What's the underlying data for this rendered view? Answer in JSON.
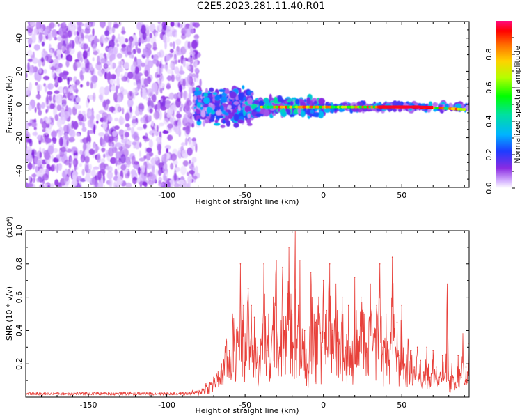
{
  "title": "C2E5.2023.281.11.40.R01",
  "chart_data": [
    {
      "type": "heatmap",
      "xlabel": "Height of straight line (km)",
      "ylabel": "Frequency (Hz)",
      "xlim": [
        -190,
        93
      ],
      "ylim": [
        -50,
        50
      ],
      "xticks": [
        -150,
        -100,
        -50,
        0,
        50
      ],
      "yticks": [
        -40,
        -20,
        0,
        20,
        40
      ],
      "colorbar": {
        "label": "Normalized spectral amplitude",
        "range": [
          0.0,
          1.0
        ],
        "ticks": [
          "0.0",
          "0.2",
          "0.4",
          "0.6",
          "0.8"
        ]
      },
      "regions": [
        {
          "x": [
            -190,
            -80
          ],
          "freq": [
            -50,
            50
          ],
          "amplitude": 0.05,
          "pattern": "diffuse noise"
        },
        {
          "x": [
            -80,
            -45
          ],
          "freq": [
            -12,
            12
          ],
          "amplitude": 0.3,
          "pattern": "widening cluster"
        },
        {
          "x": [
            -45,
            0
          ],
          "freq": [
            -6,
            5
          ],
          "amplitude": 0.45,
          "pattern": "band"
        },
        {
          "x": [
            0,
            70
          ],
          "freq": [
            -3,
            1
          ],
          "amplitude": 0.9,
          "pattern": "narrow line"
        },
        {
          "x": [
            70,
            93
          ],
          "freq": [
            -4,
            1
          ],
          "amplitude": 0.4,
          "pattern": "narrow line"
        }
      ],
      "peak_line": [
        [
          -80,
          0
        ],
        [
          -50,
          -1
        ],
        [
          -30,
          0
        ],
        [
          0,
          -1
        ],
        [
          50,
          -2
        ],
        [
          93,
          -3
        ]
      ]
    },
    {
      "type": "line",
      "xlabel": "Height of straight line (km)",
      "ylabel": "SNR (10 * v/v)",
      "scale_label": "(x10⁴)",
      "xlim": [
        -190,
        93
      ],
      "ylim": [
        0,
        1.0
      ],
      "xticks": [
        -150,
        -100,
        -50,
        0,
        50
      ],
      "yticks": [
        "0.2",
        "0.4",
        "0.6",
        "0.8",
        "1.0"
      ],
      "color": "#e8403a",
      "series": [
        {
          "x": [
            -190,
            -150,
            -100,
            -85,
            -80,
            -75,
            -70,
            -65,
            -62,
            -60,
            -58,
            -55,
            -53,
            -51,
            -50,
            -48,
            -47,
            -46,
            -45,
            -44,
            -42,
            -40,
            -38,
            -36,
            -35,
            -34,
            -32,
            -30,
            -28,
            -26,
            -25,
            -23,
            -22,
            -20,
            -19,
            -18,
            -17,
            -16,
            -15,
            -13,
            -12,
            -10,
            -8,
            -5,
            -3,
            -1,
            0,
            2,
            4,
            6,
            8,
            10,
            12,
            14,
            16,
            18,
            20,
            22,
            24,
            26,
            28,
            30,
            32,
            34,
            36,
            38,
            40,
            42,
            44,
            46,
            47,
            48,
            50,
            52,
            54,
            56,
            58,
            60,
            62,
            64,
            66,
            68,
            70,
            72,
            74,
            76,
            78,
            79,
            80,
            82,
            84,
            86,
            88,
            89,
            90,
            91,
            92,
            93
          ],
          "y": [
            0.02,
            0.02,
            0.02,
            0.02,
            0.04,
            0.08,
            0.12,
            0.2,
            0.35,
            0.28,
            0.5,
            0.42,
            0.8,
            0.55,
            0.38,
            0.65,
            0.3,
            0.55,
            0.25,
            0.48,
            0.3,
            0.35,
            0.8,
            0.28,
            0.5,
            0.2,
            0.6,
            0.82,
            0.3,
            0.78,
            0.4,
            0.62,
            0.9,
            0.5,
            0.3,
            1.0,
            0.35,
            0.55,
            0.82,
            0.3,
            0.4,
            0.2,
            0.75,
            0.45,
            0.6,
            0.3,
            0.7,
            0.52,
            0.8,
            0.4,
            0.68,
            0.35,
            0.6,
            0.3,
            0.55,
            0.25,
            0.72,
            0.35,
            0.6,
            0.5,
            0.28,
            0.68,
            0.38,
            0.55,
            0.8,
            0.3,
            0.5,
            0.22,
            0.84,
            0.3,
            0.45,
            0.25,
            0.55,
            0.2,
            0.35,
            0.28,
            0.18,
            0.3,
            0.22,
            0.15,
            0.3,
            0.12,
            0.28,
            0.18,
            0.12,
            0.25,
            0.15,
            0.68,
            0.1,
            0.2,
            0.08,
            0.25,
            0.12,
            0.38,
            0.08,
            0.18,
            0.15,
            0.32
          ]
        }
      ]
    }
  ]
}
